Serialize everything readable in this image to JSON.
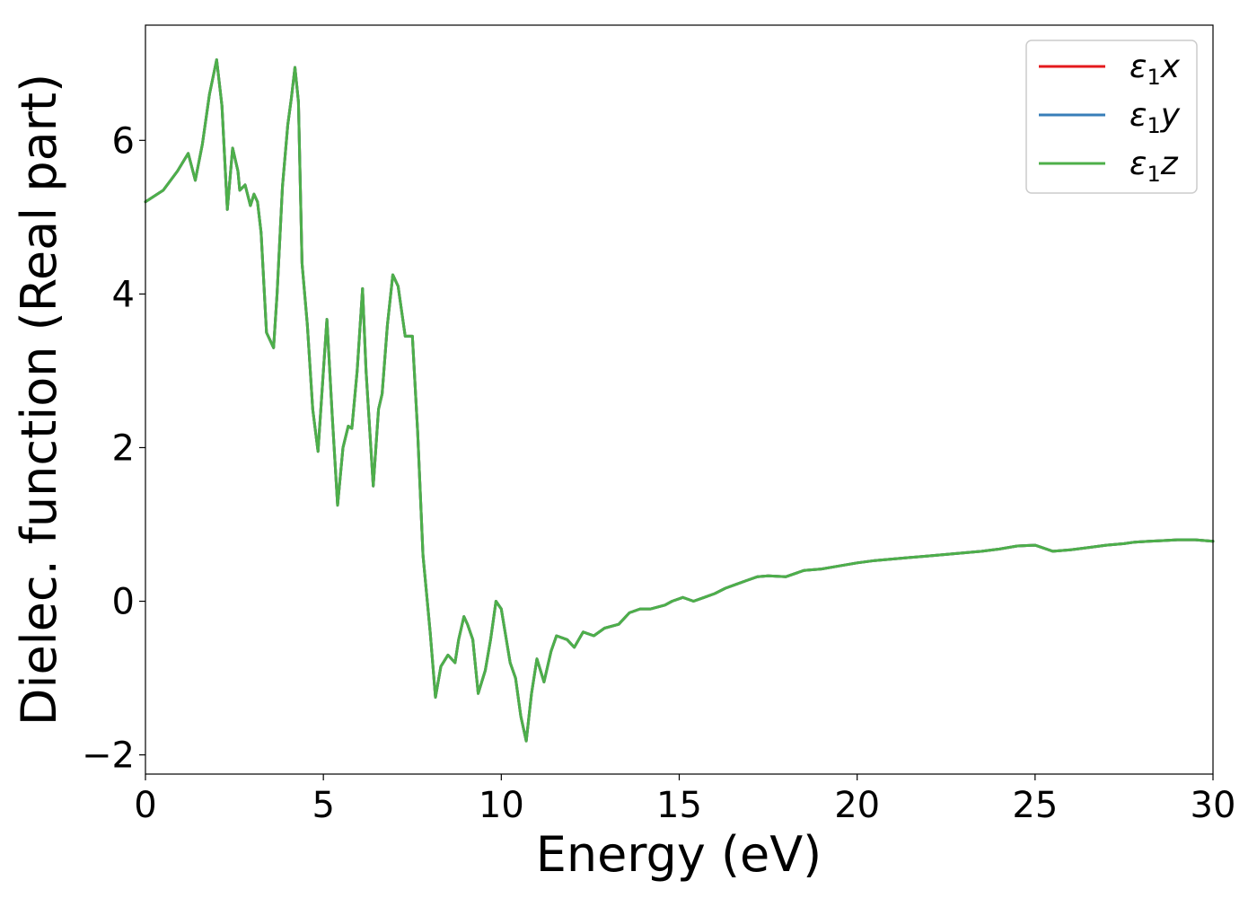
{
  "chart_data": {
    "type": "line",
    "xlabel": "Energy (eV)",
    "ylabel": "Dielec. function (Real part)",
    "xlim": [
      0,
      30
    ],
    "ylim": [
      -2.25,
      7.5
    ],
    "xticks": [
      {
        "value": 0,
        "label": "0"
      },
      {
        "value": 5,
        "label": "5"
      },
      {
        "value": 10,
        "label": "10"
      },
      {
        "value": 15,
        "label": "15"
      },
      {
        "value": 20,
        "label": "20"
      },
      {
        "value": 25,
        "label": "25"
      },
      {
        "value": 30,
        "label": "30"
      }
    ],
    "yticks": [
      {
        "value": -2,
        "label": "−2"
      },
      {
        "value": 0,
        "label": "0"
      },
      {
        "value": 2,
        "label": "2"
      },
      {
        "value": 4,
        "label": "4"
      },
      {
        "value": 6,
        "label": "6"
      }
    ],
    "grid": false,
    "legend_position": "top-right",
    "legend": [
      {
        "base": "ε",
        "sub": "1",
        "suffix": "x",
        "color": "#e41a1c"
      },
      {
        "base": "ε",
        "sub": "1",
        "suffix": "y",
        "color": "#377eb8"
      },
      {
        "base": "ε",
        "sub": "1",
        "suffix": "z",
        "color": "#4daf4a"
      }
    ],
    "series": [
      {
        "name": "ε1x",
        "color": "#e41a1c"
      },
      {
        "name": "ε1y",
        "color": "#377eb8"
      },
      {
        "name": "ε1z",
        "color": "#4daf4a"
      }
    ],
    "x": [
      0,
      0.5,
      0.9,
      1.2,
      1.4,
      1.6,
      1.8,
      2.0,
      2.15,
      2.3,
      2.45,
      2.6,
      2.65,
      2.8,
      2.95,
      3.05,
      3.15,
      3.25,
      3.4,
      3.6,
      3.7,
      3.85,
      4.0,
      4.1,
      4.2,
      4.3,
      4.4,
      4.55,
      4.7,
      4.85,
      5.0,
      5.1,
      5.25,
      5.4,
      5.55,
      5.7,
      5.8,
      5.95,
      6.1,
      6.2,
      6.4,
      6.55,
      6.65,
      6.8,
      6.95,
      7.1,
      7.3,
      7.5,
      7.65,
      7.8,
      8.0,
      8.15,
      8.3,
      8.5,
      8.7,
      8.8,
      8.95,
      9.05,
      9.2,
      9.35,
      9.55,
      9.7,
      9.85,
      10.0,
      10.25,
      10.4,
      10.55,
      10.7,
      10.85,
      11.0,
      11.2,
      11.4,
      11.55,
      11.85,
      12.05,
      12.3,
      12.6,
      12.9,
      13.3,
      13.6,
      13.9,
      14.2,
      14.6,
      14.8,
      15.1,
      15.4,
      15.7,
      16.0,
      16.3,
      16.6,
      16.9,
      17.2,
      17.5,
      18.0,
      18.5,
      19.0,
      19.5,
      20.0,
      20.5,
      21.0,
      21.5,
      22.0,
      22.5,
      23.0,
      23.5,
      24.0,
      24.5,
      25.0,
      25.5,
      26.0,
      26.5,
      27.0,
      27.5,
      27.8,
      28.2,
      28.6,
      29.0,
      29.5,
      30.0
    ],
    "values": [
      5.2,
      5.35,
      5.6,
      5.83,
      5.48,
      5.95,
      6.6,
      7.05,
      6.45,
      5.1,
      5.9,
      5.6,
      5.35,
      5.42,
      5.15,
      5.3,
      5.2,
      4.8,
      3.5,
      3.3,
      4.0,
      5.4,
      6.2,
      6.55,
      6.95,
      6.5,
      4.4,
      3.6,
      2.5,
      1.95,
      3.0,
      3.67,
      2.4,
      1.25,
      2.0,
      2.28,
      2.25,
      3.0,
      4.07,
      3.0,
      1.5,
      2.5,
      2.7,
      3.6,
      4.25,
      4.1,
      3.45,
      3.45,
      2.2,
      0.6,
      -0.4,
      -1.25,
      -0.85,
      -0.7,
      -0.8,
      -0.5,
      -0.2,
      -0.3,
      -0.5,
      -1.2,
      -0.9,
      -0.5,
      0.0,
      -0.1,
      -0.8,
      -1.0,
      -1.5,
      -1.82,
      -1.2,
      -0.75,
      -1.05,
      -0.65,
      -0.45,
      -0.5,
      -0.6,
      -0.4,
      -0.45,
      -0.35,
      -0.3,
      -0.15,
      -0.1,
      -0.1,
      -0.05,
      0.0,
      0.05,
      0.0,
      0.05,
      0.1,
      0.17,
      0.22,
      0.27,
      0.32,
      0.33,
      0.32,
      0.4,
      0.42,
      0.46,
      0.5,
      0.53,
      0.55,
      0.57,
      0.59,
      0.61,
      0.63,
      0.65,
      0.68,
      0.72,
      0.73,
      0.65,
      0.67,
      0.7,
      0.73,
      0.75,
      0.77,
      0.78,
      0.79,
      0.8,
      0.8,
      0.78
    ]
  }
}
